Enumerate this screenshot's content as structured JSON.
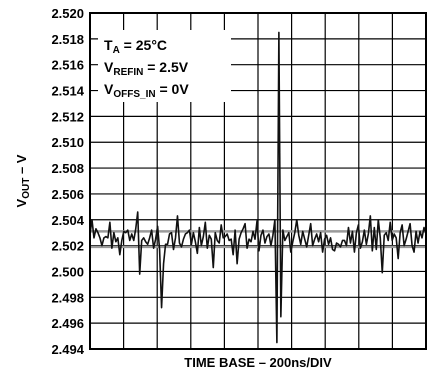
{
  "chart_data": {
    "type": "line",
    "xlabel": "TIME BASE – 200ns/DIV",
    "ylabel": {
      "main": "V",
      "sub": "OUT",
      "suffix": " – V"
    },
    "ylim": [
      2.494,
      2.52
    ],
    "xlim": [
      0,
      10
    ],
    "x_divisions": 10,
    "grid": true,
    "y_ticks": [
      "2.520",
      "2.518",
      "2.516",
      "2.514",
      "2.512",
      "2.510",
      "2.508",
      "2.506",
      "2.504",
      "2.502",
      "2.500",
      "2.498",
      "2.496",
      "2.494"
    ],
    "annotations": [
      {
        "main": "T",
        "sub": "A",
        "rest": " = 25°C"
      },
      {
        "main": "V",
        "sub": "REFIN",
        "rest": " = 2.5V"
      },
      {
        "main": "V",
        "sub": "OFFS_IN",
        "rest": " = 0V"
      }
    ],
    "reference_lines": [
      2.5031,
      2.5019
    ],
    "series": [
      {
        "values": [
          2.5029,
          2.504,
          2.5026,
          2.5033,
          2.503,
          2.5026,
          2.502,
          2.5026,
          2.5027,
          2.5026,
          2.5038,
          2.5018,
          2.503,
          2.5023,
          2.5026,
          2.5013,
          2.5024,
          2.5031,
          2.503,
          2.5032,
          2.5024,
          2.5029,
          2.5024,
          2.5033,
          2.5046,
          2.4998,
          2.5024,
          2.5026,
          2.5023,
          2.5021,
          2.5026,
          2.5032,
          2.5018,
          2.5025,
          2.5035,
          2.5017,
          2.4972,
          2.5006,
          2.5021,
          2.5021,
          2.5029,
          2.503,
          2.5017,
          2.5026,
          2.5043,
          2.5022,
          2.5019,
          2.5025,
          2.5029,
          2.503,
          2.5032,
          2.5021,
          2.503,
          2.5023,
          2.5014,
          2.5034,
          2.502,
          2.5027,
          2.5038,
          2.5018,
          2.5028,
          2.5025,
          2.5003,
          2.503,
          2.5024,
          2.5022,
          2.5036,
          2.5026,
          2.5027,
          2.5029,
          2.5024,
          2.5025,
          2.5013,
          2.5032,
          2.5006,
          2.5025,
          2.503,
          2.5033,
          2.5037,
          2.5018,
          2.5025,
          2.5023,
          2.5031,
          2.5025,
          2.5039,
          2.5016,
          2.5028,
          2.5032,
          2.5022,
          2.5027,
          2.5029,
          2.502,
          2.5028,
          2.504,
          2.4945,
          2.5185,
          2.4965,
          2.5032,
          2.5024,
          2.5027,
          2.503,
          2.5015,
          2.5023,
          2.503,
          2.504,
          2.5028,
          2.5021,
          2.5031,
          2.5025,
          2.5019,
          2.5028,
          2.5037,
          2.502,
          2.5025,
          2.5029,
          2.5023,
          2.503,
          2.5015,
          2.5025,
          2.5028,
          2.5021,
          2.5026,
          2.5017,
          2.5016,
          2.5022,
          2.5021,
          2.5019,
          2.5024,
          2.5024,
          2.502,
          2.5034,
          2.5022,
          2.5031,
          2.5015,
          2.503,
          2.5036,
          2.5018,
          2.5023,
          2.5032,
          2.5021,
          2.5029,
          2.5043,
          2.5016,
          2.5034,
          2.5017,
          2.504,
          2.5026,
          2.4999,
          2.5028,
          2.503,
          2.5024,
          2.5038,
          2.5024,
          2.5029,
          2.5026,
          2.501,
          2.503,
          2.5036,
          2.502,
          2.5025,
          2.5031,
          2.5037,
          2.502,
          2.5015,
          2.5031,
          2.5022,
          2.5031,
          2.5026,
          2.5034,
          2.5029
        ]
      }
    ]
  }
}
